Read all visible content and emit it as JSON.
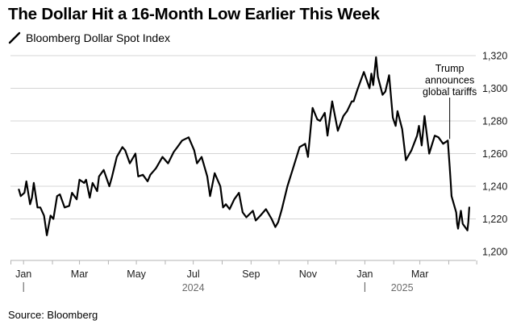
{
  "chart_data": {
    "type": "line",
    "title": "The Dollar Hit a 16-Month Low Earlier This Week",
    "source": "Source: Bloomberg",
    "series": [
      {
        "name": "Bloomberg Dollar Spot Index",
        "color": "#000000",
        "x": [
          "2023-12-27",
          "2023-12-29",
          "2024-01-02",
          "2024-01-04",
          "2024-01-08",
          "2024-01-10",
          "2024-01-12",
          "2024-01-16",
          "2024-01-19",
          "2024-01-23",
          "2024-01-26",
          "2024-01-30",
          "2024-02-02",
          "2024-02-06",
          "2024-02-09",
          "2024-02-14",
          "2024-02-19",
          "2024-02-22",
          "2024-02-27",
          "2024-03-01",
          "2024-03-06",
          "2024-03-08",
          "2024-03-12",
          "2024-03-15",
          "2024-03-20",
          "2024-03-22",
          "2024-03-27",
          "2024-04-02",
          "2024-04-05",
          "2024-04-10",
          "2024-04-16",
          "2024-04-19",
          "2024-04-24",
          "2024-04-30",
          "2024-05-03",
          "2024-05-08",
          "2024-05-13",
          "2024-05-16",
          "2024-05-22",
          "2024-05-29",
          "2024-06-04",
          "2024-06-10",
          "2024-06-14",
          "2024-06-19",
          "2024-06-26",
          "2024-07-02",
          "2024-07-05",
          "2024-07-10",
          "2024-07-16",
          "2024-07-19",
          "2024-07-24",
          "2024-07-30",
          "2024-08-02",
          "2024-08-05",
          "2024-08-09",
          "2024-08-14",
          "2024-08-19",
          "2024-08-23",
          "2024-08-27",
          "2024-09-03",
          "2024-09-06",
          "2024-09-11",
          "2024-09-17",
          "2024-09-23",
          "2024-09-27",
          "2024-09-30",
          "2024-10-04",
          "2024-10-10",
          "2024-10-16",
          "2024-10-23",
          "2024-10-29",
          "2024-11-01",
          "2024-11-06",
          "2024-11-11",
          "2024-11-14",
          "2024-11-19",
          "2024-11-22",
          "2024-11-27",
          "2024-12-03",
          "2024-12-09",
          "2024-12-13",
          "2024-12-18",
          "2024-12-20",
          "2024-12-24",
          "2024-12-31",
          "2025-01-06",
          "2025-01-08",
          "2025-01-10",
          "2025-01-13",
          "2025-01-15",
          "2025-01-20",
          "2025-01-23",
          "2025-01-27",
          "2025-01-31",
          "2025-02-03",
          "2025-02-05",
          "2025-02-10",
          "2025-02-14",
          "2025-02-20",
          "2025-02-26",
          "2025-02-28",
          "2025-03-03",
          "2025-03-06",
          "2025-03-11",
          "2025-03-17",
          "2025-03-21",
          "2025-03-26",
          "2025-03-31",
          "2025-04-02",
          "2025-04-03",
          "2025-04-04",
          "2025-04-09",
          "2025-04-10",
          "2025-04-11",
          "2025-04-14",
          "2025-04-16",
          "2025-04-21",
          "2025-04-22",
          "2025-04-23"
        ],
        "y": [
          1238,
          1234,
          1236,
          1243,
          1229,
          1233,
          1242,
          1227,
          1227,
          1222,
          1210,
          1222,
          1220,
          1234,
          1235,
          1227,
          1228,
          1236,
          1232,
          1244,
          1242,
          1244,
          1233,
          1242,
          1237,
          1246,
          1250,
          1240,
          1246,
          1258,
          1264,
          1262,
          1254,
          1260,
          1246,
          1247,
          1243,
          1247,
          1251,
          1258,
          1254,
          1261,
          1264,
          1268,
          1270,
          1262,
          1254,
          1258,
          1246,
          1234,
          1248,
          1240,
          1227,
          1229,
          1226,
          1232,
          1236,
          1224,
          1221,
          1225,
          1219,
          1222,
          1226,
          1220,
          1215,
          1218,
          1226,
          1240,
          1251,
          1264,
          1266,
          1258,
          1288,
          1281,
          1280,
          1285,
          1271,
          1292,
          1274,
          1283,
          1286,
          1292,
          1292,
          1299,
          1310,
          1300,
          1309,
          1302,
          1319,
          1307,
          1296,
          1298,
          1308,
          1282,
          1277,
          1286,
          1275,
          1256,
          1262,
          1271,
          1277,
          1265,
          1283,
          1260,
          1271,
          1270,
          1266,
          1268,
          1252,
          1243,
          1234,
          1224,
          1217,
          1214,
          1225,
          1217,
          1213,
          1218,
          1227
        ]
      }
    ],
    "y_axis": {
      "range": [
        1200,
        1320
      ],
      "ticks": [
        "1,200",
        "1,220",
        "1,240",
        "1,260",
        "1,280",
        "1,300",
        "1,320"
      ],
      "tick_values": [
        1200,
        1220,
        1240,
        1260,
        1280,
        1300,
        1320
      ]
    },
    "x_axis": {
      "month_labels": [
        {
          "label": "Jan",
          "date": "2024-01-01"
        },
        {
          "label": "Mar",
          "date": "2024-03-01"
        },
        {
          "label": "May",
          "date": "2024-05-01"
        },
        {
          "label": "Jul",
          "date": "2024-07-01"
        },
        {
          "label": "Sep",
          "date": "2024-09-01"
        },
        {
          "label": "Nov",
          "date": "2024-11-01"
        },
        {
          "label": "Jan",
          "date": "2025-01-01"
        },
        {
          "label": "Mar",
          "date": "2025-03-01"
        }
      ],
      "year_labels": [
        {
          "label": "2024",
          "date": "2024-07-01",
          "start": "2024-01-01"
        },
        {
          "label": "2025",
          "date": "2025-02-10",
          "start": "2025-01-01"
        }
      ]
    },
    "annotations": [
      {
        "date": "2025-04-02",
        "value": 1268,
        "lines": [
          "Trump",
          "announces",
          "global tariffs"
        ]
      }
    ],
    "grid": true,
    "legend_position": "top-left"
  }
}
